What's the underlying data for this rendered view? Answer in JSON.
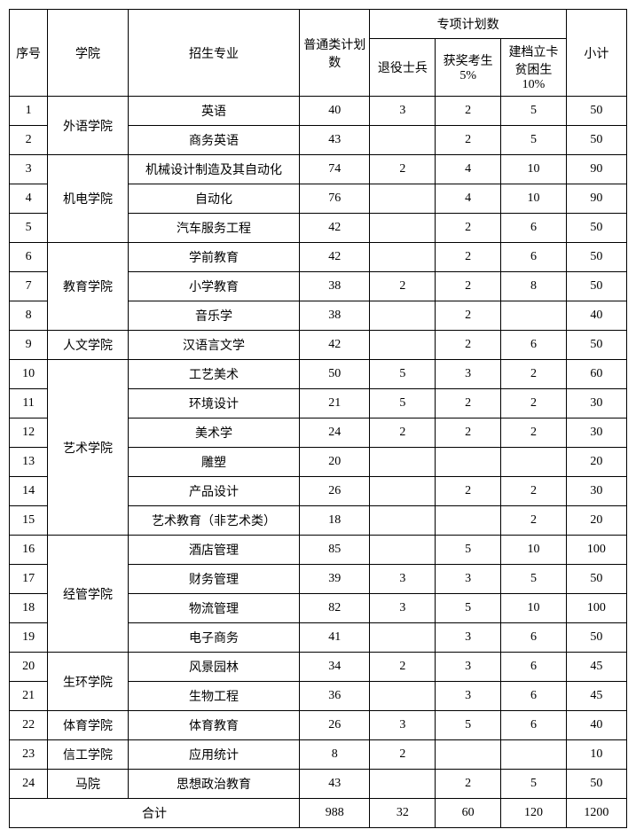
{
  "headers": {
    "seq": "序号",
    "college": "学院",
    "major": "招生专业",
    "regularPlan": "普通类计划数",
    "specialPlanGroup": "专项计划数",
    "retiredSoldier": "退役士兵",
    "awardedExaminee": "获奖考生5%",
    "povertyFiled": "建档立卡贫困生 10%",
    "subtotal": "小计"
  },
  "rows": [
    {
      "seq": "1",
      "college": "外语学院",
      "major": "英语",
      "plan": "40",
      "sp1": "3",
      "sp2": "2",
      "sp3": "5",
      "total": "50"
    },
    {
      "seq": "2",
      "college": "",
      "major": "商务英语",
      "plan": "43",
      "sp1": "",
      "sp2": "2",
      "sp3": "5",
      "total": "50"
    },
    {
      "seq": "3",
      "college": "机电学院",
      "major": "机械设计制造及其自动化",
      "plan": "74",
      "sp1": "2",
      "sp2": "4",
      "sp3": "10",
      "total": "90"
    },
    {
      "seq": "4",
      "college": "",
      "major": "自动化",
      "plan": "76",
      "sp1": "",
      "sp2": "4",
      "sp3": "10",
      "total": "90"
    },
    {
      "seq": "5",
      "college": "",
      "major": "汽车服务工程",
      "plan": "42",
      "sp1": "",
      "sp2": "2",
      "sp3": "6",
      "total": "50"
    },
    {
      "seq": "6",
      "college": "教育学院",
      "major": "学前教育",
      "plan": "42",
      "sp1": "",
      "sp2": "2",
      "sp3": "6",
      "total": "50"
    },
    {
      "seq": "7",
      "college": "",
      "major": "小学教育",
      "plan": "38",
      "sp1": "2",
      "sp2": "2",
      "sp3": "8",
      "total": "50"
    },
    {
      "seq": "8",
      "college": "",
      "major": "音乐学",
      "plan": "38",
      "sp1": "",
      "sp2": "2",
      "sp3": "",
      "total": "40"
    },
    {
      "seq": "9",
      "college": "人文学院",
      "major": "汉语言文学",
      "plan": "42",
      "sp1": "",
      "sp2": "2",
      "sp3": "6",
      "total": "50"
    },
    {
      "seq": "10",
      "college": "艺术学院",
      "major": "工艺美术",
      "plan": "50",
      "sp1": "5",
      "sp2": "3",
      "sp3": "2",
      "total": "60"
    },
    {
      "seq": "11",
      "college": "",
      "major": "环境设计",
      "plan": "21",
      "sp1": "5",
      "sp2": "2",
      "sp3": "2",
      "total": "30"
    },
    {
      "seq": "12",
      "college": "",
      "major": "美术学",
      "plan": "24",
      "sp1": "2",
      "sp2": "2",
      "sp3": "2",
      "total": "30"
    },
    {
      "seq": "13",
      "college": "",
      "major": "雕塑",
      "plan": "20",
      "sp1": "",
      "sp2": "",
      "sp3": "",
      "total": "20"
    },
    {
      "seq": "14",
      "college": "",
      "major": "产品设计",
      "plan": "26",
      "sp1": "",
      "sp2": "2",
      "sp3": "2",
      "total": "30"
    },
    {
      "seq": "15",
      "college": "",
      "major": "艺术教育（非艺术类）",
      "plan": "18",
      "sp1": "",
      "sp2": "",
      "sp3": "2",
      "total": "20"
    },
    {
      "seq": "16",
      "college": "经管学院",
      "major": "酒店管理",
      "plan": "85",
      "sp1": "",
      "sp2": "5",
      "sp3": "10",
      "total": "100"
    },
    {
      "seq": "17",
      "college": "",
      "major": "财务管理",
      "plan": "39",
      "sp1": "3",
      "sp2": "3",
      "sp3": "5",
      "total": "50"
    },
    {
      "seq": "18",
      "college": "",
      "major": "物流管理",
      "plan": "82",
      "sp1": "3",
      "sp2": "5",
      "sp3": "10",
      "total": "100"
    },
    {
      "seq": "19",
      "college": "",
      "major": "电子商务",
      "plan": "41",
      "sp1": "",
      "sp2": "3",
      "sp3": "6",
      "total": "50"
    },
    {
      "seq": "20",
      "college": "生环学院",
      "major": "风景园林",
      "plan": "34",
      "sp1": "2",
      "sp2": "3",
      "sp3": "6",
      "total": "45"
    },
    {
      "seq": "21",
      "college": "",
      "major": "生物工程",
      "plan": "36",
      "sp1": "",
      "sp2": "3",
      "sp3": "6",
      "total": "45"
    },
    {
      "seq": "22",
      "college": "体育学院",
      "major": "体育教育",
      "plan": "26",
      "sp1": "3",
      "sp2": "5",
      "sp3": "6",
      "total": "40"
    },
    {
      "seq": "23",
      "college": "信工学院",
      "major": "应用统计",
      "plan": "8",
      "sp1": "2",
      "sp2": "",
      "sp3": "",
      "total": "10"
    },
    {
      "seq": "24",
      "college": "马院",
      "major": "思想政治教育",
      "plan": "43",
      "sp1": "",
      "sp2": "2",
      "sp3": "5",
      "total": "50"
    }
  ],
  "collegeSpans": {
    "0": 2,
    "2": 3,
    "5": 3,
    "8": 1,
    "9": 6,
    "15": 4,
    "19": 2,
    "21": 1,
    "22": 1,
    "23": 1
  },
  "totals": {
    "label": "合计",
    "plan": "988",
    "sp1": "32",
    "sp2": "60",
    "sp3": "120",
    "total": "1200"
  }
}
